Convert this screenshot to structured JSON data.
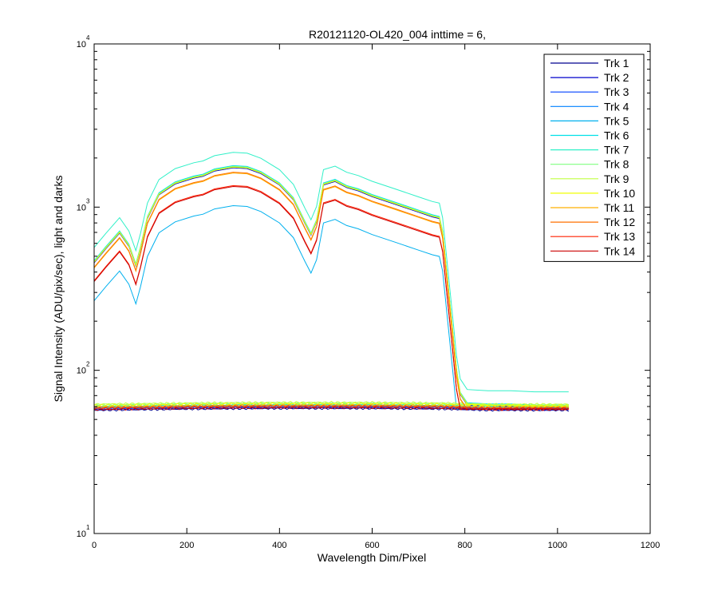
{
  "chart_data": {
    "type": "line",
    "title": "R20121120-OL420_004 inttime = 6,",
    "xlabel": "Wavelength Dim/Pixel",
    "ylabel": "Signal Intensity (ADU/pix/sec), light and darks",
    "xlim": [
      0,
      1200
    ],
    "ylim": [
      10,
      10000
    ],
    "yscale": "log",
    "xticks": [
      0,
      200,
      400,
      600,
      800,
      1000,
      1200
    ],
    "xtick_labels": [
      "0",
      "200",
      "400",
      "600",
      "800",
      "1000",
      "1200"
    ],
    "yticks": [
      {
        "value": 10,
        "base": "10",
        "exp": "1"
      },
      {
        "value": 100,
        "base": "10",
        "exp": "2"
      },
      {
        "value": 1000,
        "base": "10",
        "exp": "3"
      },
      {
        "value": 10000,
        "base": "10",
        "exp": "4"
      }
    ],
    "grid": false,
    "legend_position": "top-right",
    "light_profile": {
      "x": [
        0,
        25,
        55,
        75,
        90,
        100,
        115,
        140,
        175,
        215,
        235,
        260,
        300,
        330,
        360,
        400,
        430,
        455,
        468,
        480,
        495,
        520,
        545,
        570,
        600,
        650,
        700,
        730,
        745,
        752,
        760,
        768,
        775,
        782,
        790,
        805,
        850,
        900,
        950,
        1024
      ],
      "y": [
        460,
        560,
        700,
        580,
        440,
        560,
        860,
        1200,
        1400,
        1520,
        1560,
        1680,
        1760,
        1740,
        1620,
        1380,
        1120,
        800,
        680,
        820,
        1380,
        1450,
        1330,
        1270,
        1170,
        1050,
        940,
        880,
        860,
        700,
        420,
        250,
        160,
        100,
        72,
        62,
        61,
        61,
        60,
        60
      ],
      "dark_x": [
        0,
        100,
        200,
        300,
        400,
        500,
        600,
        700,
        760,
        800,
        850,
        900,
        950,
        1024
      ],
      "dark_y": [
        58,
        58.5,
        59,
        59.3,
        59.5,
        59.5,
        59.5,
        59.2,
        59,
        58.5,
        58,
        58,
        58,
        58
      ]
    },
    "series": [
      {
        "name": "Trk 1",
        "color": "#00008f",
        "scale": 1.0,
        "dark_scale": 0.98
      },
      {
        "name": "Trk 2",
        "color": "#0000cc",
        "scale": 0.99,
        "dark_scale": 0.99
      },
      {
        "name": "Trk 3",
        "color": "#0040ff",
        "scale": 1.0,
        "dark_scale": 1.0
      },
      {
        "name": "Trk 4",
        "color": "#0080ff",
        "scale": 1.0,
        "dark_scale": 1.01
      },
      {
        "name": "Trk 5",
        "color": "#00b0ee",
        "scale": 0.58,
        "dark_scale": 1.02
      },
      {
        "name": "Trk 6",
        "color": "#00e0e8",
        "scale": 1.02,
        "dark_scale": 1.03
      },
      {
        "name": "Trk 7",
        "color": "#30f0c8",
        "scale": 1.23,
        "dark_scale": 1.04
      },
      {
        "name": "Trk 8",
        "color": "#80ff80",
        "scale": 1.01,
        "dark_scale": 1.06
      },
      {
        "name": "Trk 9",
        "color": "#c0ff40",
        "scale": 1.0,
        "dark_scale": 1.07
      },
      {
        "name": "Trk 10",
        "color": "#f0ff00",
        "scale": 1.0,
        "dark_scale": 1.05
      },
      {
        "name": "Trk 11",
        "color": "#ffb000",
        "scale": 0.92,
        "dark_scale": 1.03
      },
      {
        "name": "Trk 12",
        "color": "#ff7000",
        "scale": 0.93,
        "dark_scale": 1.02
      },
      {
        "name": "Trk 13",
        "color": "#ff2000",
        "scale": 0.77,
        "dark_scale": 1.01
      },
      {
        "name": "Trk 14",
        "color": "#cc0000",
        "scale": 0.76,
        "dark_scale": 0.99
      }
    ]
  }
}
